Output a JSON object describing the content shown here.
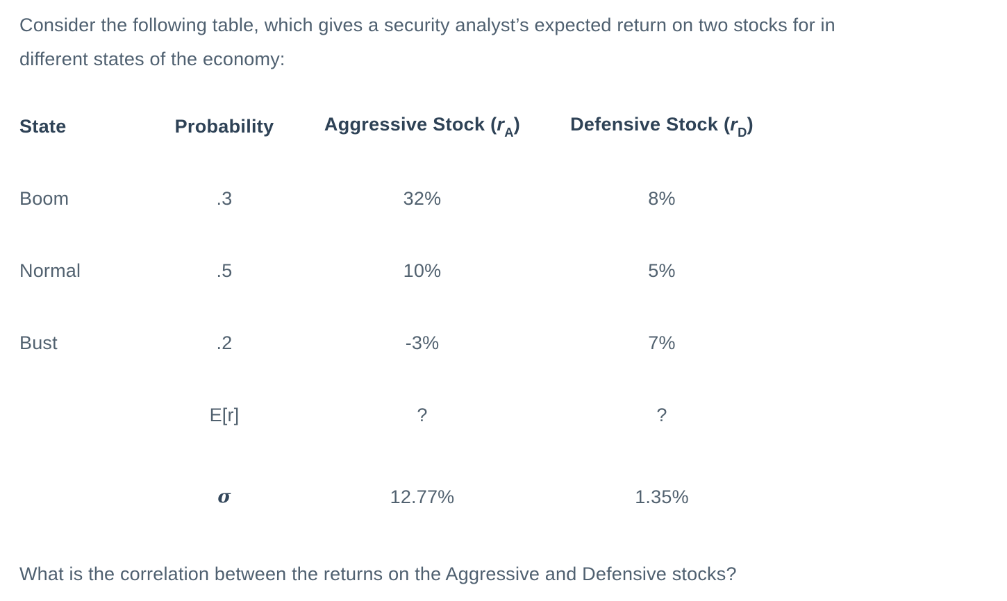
{
  "intro": {
    "lines": [
      "Consider the following table, which gives a security analyst’s expected return on two stocks for in",
      "different states of the economy:"
    ]
  },
  "table": {
    "headers": {
      "state": {
        "label": "State"
      },
      "probability": {
        "label": "Probability"
      },
      "aggressive": {
        "prefix": "Aggressive Stock (",
        "symbol": "r",
        "subscript": "A",
        "suffix": ")"
      },
      "defensive": {
        "prefix": "Defensive Stock (",
        "symbol": "r",
        "subscript": "D",
        "suffix": ")"
      }
    },
    "rows": [
      {
        "state": "Boom",
        "probability": ".3",
        "aggressive": "32%",
        "defensive": "8%"
      },
      {
        "state": "Normal",
        "probability": ".5",
        "aggressive": "10%",
        "defensive": "5%"
      },
      {
        "state": "Bust",
        "probability": ".2",
        "aggressive": "-3%",
        "defensive": "7%"
      },
      {
        "state": "",
        "probability": "E[r]",
        "aggressive": "?",
        "defensive": "?"
      },
      {
        "state": "",
        "probability": "σ",
        "aggressive": "12.77%",
        "defensive": "1.35%"
      }
    ]
  },
  "question": "What is the correlation between the returns on the Aggressive and Defensive stocks?",
  "colors": {
    "background": "#ffffff",
    "body_text": "#4f6070",
    "header_text": "#2e4256",
    "sigma_text": "#33475b"
  }
}
